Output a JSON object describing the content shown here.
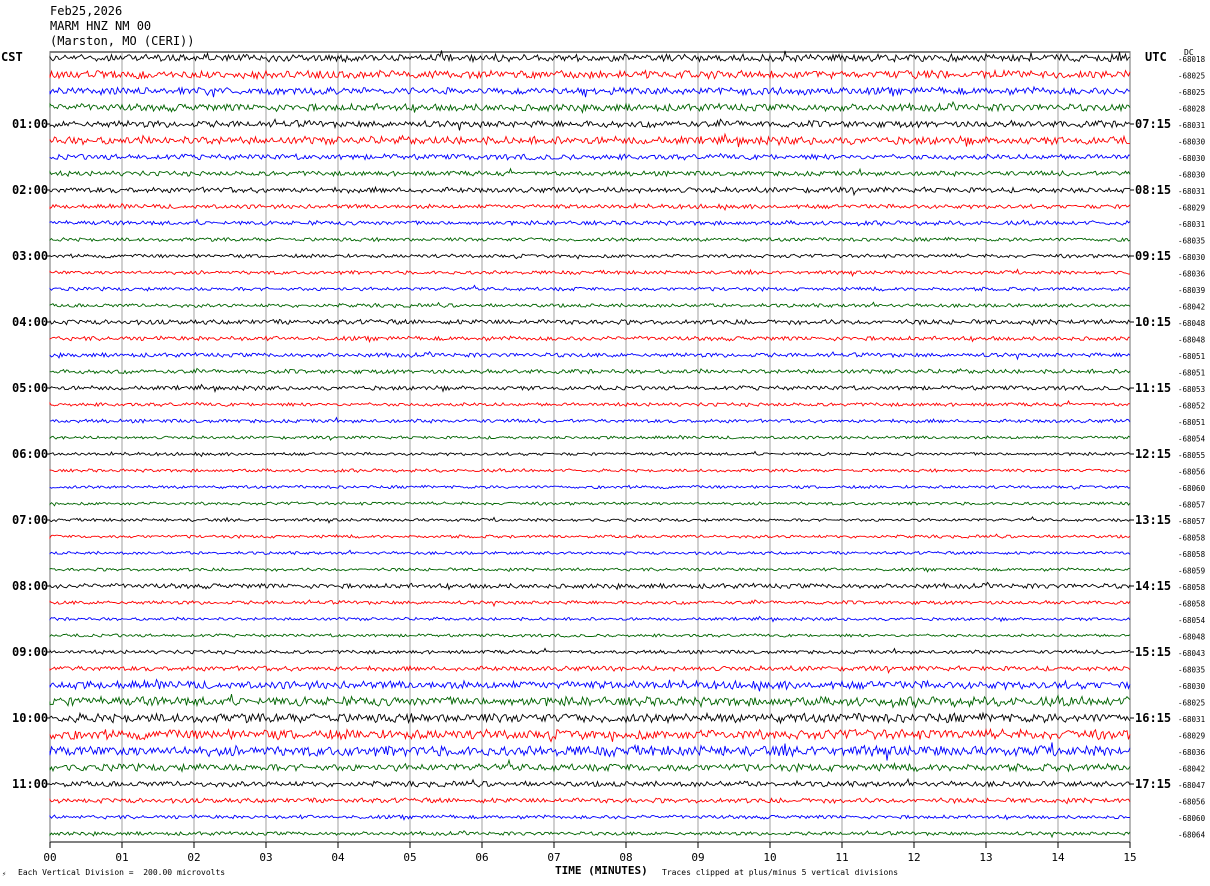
{
  "header": {
    "date": "Feb25,2026",
    "station": "MARM HNZ NM 00",
    "location": "(Marston, MO (CERI))"
  },
  "axes": {
    "left_zone": "CST",
    "right_zone": "UTC",
    "right_header": "DC"
  },
  "footer": {
    "division": "Each Vertical Division =  200.00 microvolts",
    "xlabel": "TIME (MINUTES)",
    "clipped": "Traces clipped at plus/minus 5 vertical divisions",
    "mark": "⚡"
  },
  "colors": {
    "trace_cycle": [
      "#000000",
      "#ff0000",
      "#0000ff",
      "#006400"
    ],
    "grid": "#888888"
  },
  "chart_data": {
    "type": "line",
    "xlabel": "TIME (MINUTES)",
    "xlim": [
      0,
      15
    ],
    "x_ticks": [
      "00",
      "01",
      "02",
      "03",
      "04",
      "05",
      "06",
      "07",
      "08",
      "09",
      "10",
      "11",
      "12",
      "13",
      "14",
      "15"
    ],
    "left_hour_labels": [
      "01:00",
      "02:00",
      "03:00",
      "04:00",
      "05:00",
      "06:00",
      "07:00",
      "08:00",
      "09:00",
      "10:00",
      "11:00"
    ],
    "right_hour_labels": [
      "07:15",
      "08:15",
      "09:15",
      "10:15",
      "11:15",
      "12:15",
      "13:15",
      "14:15",
      "15:15",
      "16:15",
      "17:15"
    ],
    "trace_count": 48,
    "dc_offsets": [
      "-68018",
      "-68025",
      "-68025",
      "-68028",
      "-68031",
      "-68030",
      "-68030",
      "-68030",
      "-68031",
      "-68029",
      "-68031",
      "-68035",
      "-68030",
      "-68036",
      "-68039",
      "-68042",
      "-68048",
      "-68048",
      "-68051",
      "-68051",
      "-68053",
      "-68052",
      "-68051",
      "-68054",
      "-68055",
      "-68056",
      "-68060",
      "-68057",
      "-68057",
      "-68058",
      "-68058",
      "-68059",
      "-68058",
      "-68058",
      "-68054",
      "-68048",
      "-68043",
      "-68035",
      "-68030",
      "-68025",
      "-68031",
      "-68029",
      "-68036",
      "-68042",
      "-68047",
      "-68056",
      "-68060",
      "-68064"
    ],
    "trace_activity": [
      1.2,
      1.3,
      1.2,
      1.2,
      1.1,
      1.3,
      0.9,
      0.8,
      0.9,
      0.7,
      0.7,
      0.6,
      0.6,
      0.6,
      0.6,
      0.6,
      0.8,
      0.7,
      0.7,
      0.7,
      0.7,
      0.6,
      0.6,
      0.5,
      0.5,
      0.5,
      0.5,
      0.5,
      0.5,
      0.5,
      0.5,
      0.5,
      0.8,
      0.6,
      0.5,
      0.5,
      0.6,
      0.8,
      1.3,
      1.5,
      1.5,
      1.6,
      1.7,
      1.2,
      0.9,
      0.8,
      0.6,
      0.6
    ]
  }
}
